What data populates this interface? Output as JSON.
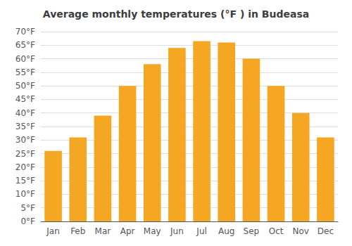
{
  "chart_data": {
    "type": "bar",
    "title": "Average monthly temperatures (°F ) in Budeasa",
    "categories": [
      "Jan",
      "Feb",
      "Mar",
      "Apr",
      "May",
      "Jun",
      "Jul",
      "Aug",
      "Sep",
      "Oct",
      "Nov",
      "Dec"
    ],
    "values": [
      26,
      31,
      39,
      50,
      58,
      64,
      66.5,
      66,
      60,
      50,
      40,
      31
    ],
    "color": "#F5A623",
    "ylim": [
      0,
      70
    ],
    "yticks": [
      {
        "value": 0,
        "label": "0°F"
      },
      {
        "value": 5,
        "label": "5°F"
      },
      {
        "value": 10,
        "label": "10°F"
      },
      {
        "value": 15,
        "label": "15°F"
      },
      {
        "value": 20,
        "label": "20°F"
      },
      {
        "value": 25,
        "label": "25°F"
      },
      {
        "value": 30,
        "label": "30°F"
      },
      {
        "value": 35,
        "label": "35°F"
      },
      {
        "value": 40,
        "label": "40°F"
      },
      {
        "value": 45,
        "label": "45°F"
      },
      {
        "value": 50,
        "label": "50°F"
      },
      {
        "value": 55,
        "label": "55°F"
      },
      {
        "value": 60,
        "label": "60°F"
      },
      {
        "value": 65,
        "label": "65°F"
      },
      {
        "value": 70,
        "label": "70°F"
      }
    ],
    "grid": true
  }
}
